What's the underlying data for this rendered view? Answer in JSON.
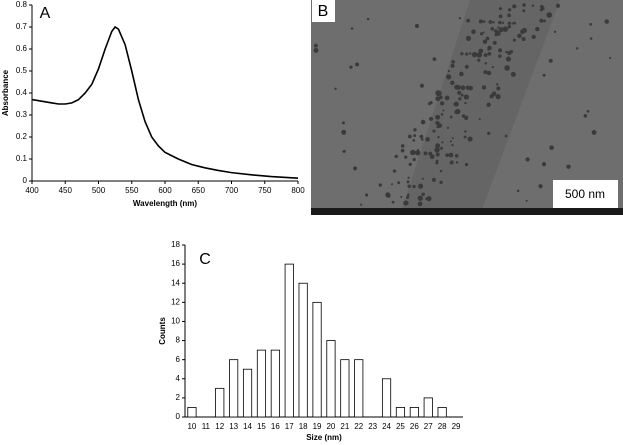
{
  "chart_data": [
    {
      "type": "line",
      "label": "A",
      "x_label": "Wavelength (nm)",
      "y_label": "Absorbance",
      "x": [
        400,
        410,
        420,
        430,
        440,
        450,
        460,
        470,
        480,
        490,
        500,
        510,
        520,
        525,
        530,
        540,
        550,
        560,
        570,
        580,
        590,
        600,
        620,
        640,
        660,
        680,
        700,
        730,
        760,
        800
      ],
      "series": [
        {
          "color": "#000000",
          "values": [
            0.37,
            0.365,
            0.36,
            0.355,
            0.35,
            0.35,
            0.355,
            0.37,
            0.4,
            0.44,
            0.51,
            0.6,
            0.68,
            0.7,
            0.69,
            0.62,
            0.5,
            0.37,
            0.27,
            0.2,
            0.16,
            0.13,
            0.1,
            0.075,
            0.06,
            0.048,
            0.038,
            0.028,
            0.02,
            0.013
          ]
        }
      ],
      "xlim": [
        400,
        800
      ],
      "xticks": [
        400,
        450,
        500,
        550,
        600,
        650,
        700,
        750,
        800
      ],
      "ylim": [
        0,
        0.8
      ],
      "yticks": [
        0,
        0.1,
        0.2,
        0.3,
        0.4,
        0.5,
        0.6,
        0.7,
        0.8
      ],
      "grid": false
    },
    {
      "type": "bar",
      "label": "C",
      "x_label": "Size (nm)",
      "y_label": "Counts",
      "categories": [
        "10",
        "11",
        "12",
        "13",
        "14",
        "15",
        "16",
        "17",
        "18",
        "19",
        "20",
        "21",
        "22",
        "23",
        "24",
        "25",
        "26",
        "27",
        "28",
        "29"
      ],
      "values": [
        1,
        0,
        3,
        6,
        5,
        7,
        7,
        16,
        14,
        12,
        8,
        6,
        6,
        0,
        4,
        1,
        1,
        2,
        1,
        0
      ],
      "color": "#ffffff",
      "ylim": [
        0,
        18
      ],
      "yticks": [
        0,
        2,
        4,
        6,
        8,
        10,
        12,
        14,
        16,
        18
      ],
      "grid": false
    }
  ],
  "image_panel": {
    "label": "B",
    "scale_bar": "500 nm"
  }
}
